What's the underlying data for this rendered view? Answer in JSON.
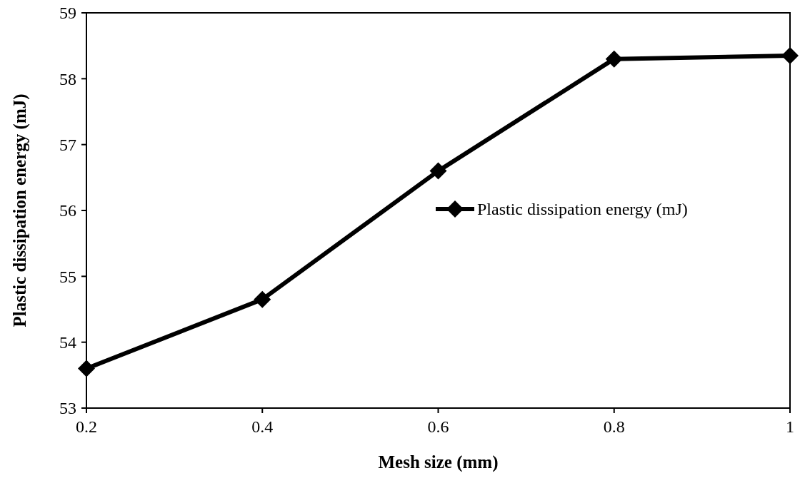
{
  "chart_data": {
    "type": "line",
    "xlabel": "Mesh size (mm)",
    "ylabel": "Plastic dissipation energy (mJ)",
    "x": [
      0.2,
      0.4,
      0.6,
      0.8,
      1
    ],
    "series": [
      {
        "name": "Plastic dissipation energy (mJ)",
        "color": "#000000",
        "values": [
          53.6,
          54.65,
          56.6,
          58.3,
          58.35
        ]
      }
    ],
    "xlim": [
      0.2,
      1
    ],
    "xticks": [
      0.2,
      0.4,
      0.6,
      0.8,
      1
    ],
    "ylim": [
      53,
      59
    ],
    "yticks": [
      53,
      54,
      55,
      56,
      57,
      58,
      59
    ],
    "marker": "diamond",
    "line_style": "solid",
    "legend": "right",
    "grid": false
  }
}
